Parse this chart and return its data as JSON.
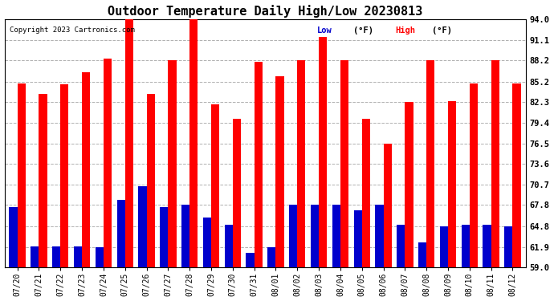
{
  "title": "Outdoor Temperature Daily High/Low 20230813",
  "copyright": "Copyright 2023 Cartronics.com",
  "legend_low": "Low",
  "legend_high": "High",
  "legend_unit": "(°F)",
  "ylabel_right_ticks": [
    59.0,
    61.9,
    64.8,
    67.8,
    70.7,
    73.6,
    76.5,
    79.4,
    82.3,
    85.2,
    88.2,
    91.1,
    94.0
  ],
  "ylim": [
    59.0,
    94.0
  ],
  "dates": [
    "07/20",
    "07/21",
    "07/22",
    "07/23",
    "07/24",
    "07/25",
    "07/26",
    "07/27",
    "07/28",
    "07/29",
    "07/30",
    "07/31",
    "08/01",
    "08/02",
    "08/03",
    "08/04",
    "08/05",
    "08/06",
    "08/07",
    "08/08",
    "08/09",
    "08/10",
    "08/11",
    "08/12"
  ],
  "highs": [
    85.0,
    83.5,
    84.8,
    86.5,
    88.5,
    94.0,
    83.5,
    88.2,
    94.0,
    82.0,
    80.0,
    88.0,
    86.0,
    88.2,
    91.5,
    88.2,
    80.0,
    76.5,
    82.3,
    88.2,
    82.5,
    85.0,
    88.2,
    85.0
  ],
  "lows": [
    67.5,
    62.0,
    62.0,
    62.0,
    61.9,
    68.5,
    70.5,
    67.5,
    67.8,
    66.0,
    65.0,
    61.0,
    61.9,
    67.8,
    67.8,
    67.8,
    67.0,
    67.8,
    65.0,
    62.5,
    64.8,
    65.0,
    65.0,
    64.8
  ],
  "high_color": "#ff0000",
  "low_color": "#0000cc",
  "bg_color": "#ffffff",
  "grid_color": "#b0b0b0",
  "title_fontsize": 11,
  "bar_width": 0.38
}
